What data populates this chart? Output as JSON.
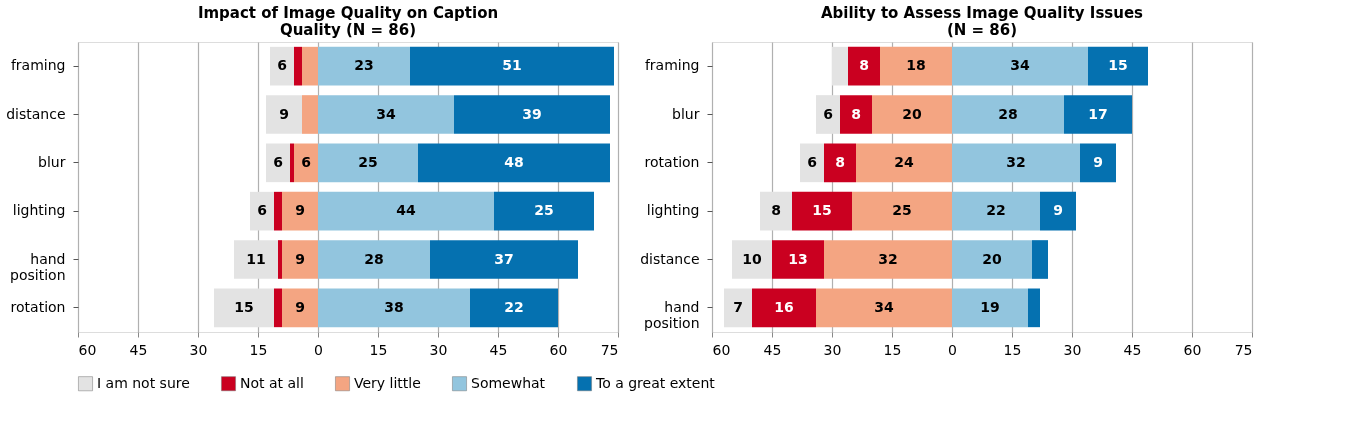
{
  "chart_data": [
    {
      "type": "bar",
      "orientation": "horizontal",
      "title": "Impact of Image Quality on Caption Quality (N = 86)",
      "categories": [
        "framing",
        "distance",
        "blur",
        "lighting",
        "hand position",
        "rotation"
      ],
      "series": [
        {
          "name": "I am not sure",
          "color": "#e3e3e3",
          "values": [
            6,
            9,
            6,
            6,
            11,
            15
          ],
          "base": [
            -12,
            -13,
            -13,
            -17,
            -21,
            -26
          ],
          "value_labels": [
            "6",
            "9",
            "6",
            "6",
            "11",
            "15"
          ]
        },
        {
          "name": "Not at all",
          "color": "#ca0020",
          "values": [
            2,
            null,
            1,
            2,
            1,
            2
          ],
          "base": [
            -6,
            null,
            -7,
            -11,
            -10,
            -11
          ],
          "value_labels": [
            null,
            null,
            null,
            null,
            null,
            null
          ]
        },
        {
          "name": "Very little",
          "color": "#f4a582",
          "values": [
            4,
            4,
            6,
            9,
            9,
            9
          ],
          "base": [
            -4,
            -4,
            -6,
            -9,
            -9,
            -9
          ],
          "value_labels": [
            null,
            null,
            "6",
            "9",
            "9",
            "9"
          ]
        },
        {
          "name": "Somewhat",
          "color": "#92c5de",
          "values": [
            23,
            34,
            25,
            44,
            28,
            38
          ],
          "base": [
            0,
            0,
            0,
            0,
            0,
            0
          ],
          "value_labels": [
            "23",
            "34",
            "25",
            "44",
            "28",
            "38"
          ]
        },
        {
          "name": "To a great extent",
          "color": "#0571b0",
          "values": [
            51,
            39,
            48,
            25,
            37,
            22
          ],
          "base": [
            23,
            34,
            25,
            44,
            28,
            38
          ],
          "value_labels": [
            "51",
            "39",
            "48",
            "25",
            "37",
            "22"
          ]
        }
      ],
      "xlim": [
        -60,
        75
      ],
      "xticks": [
        {
          "value": -60,
          "label": "60"
        },
        {
          "value": -45,
          "label": "45"
        },
        {
          "value": -30,
          "label": "30"
        },
        {
          "value": -15,
          "label": "15"
        },
        0,
        15,
        30,
        45,
        60,
        75
      ],
      "grid": "x",
      "legend": "bottom"
    },
    {
      "type": "bar",
      "orientation": "horizontal",
      "title": "Ability to Assess Image Quality Issues (N = 86)",
      "categories": [
        "framing",
        "blur",
        "rotation",
        "lighting",
        "distance",
        "hand position"
      ],
      "series": [
        {
          "name": "I am not sure",
          "color": "#e3e3e3",
          "values": [
            4,
            6,
            6,
            8,
            10,
            7
          ],
          "base": [
            -30,
            -34,
            -38,
            -48,
            -55,
            -57
          ],
          "value_labels": [
            null,
            "6",
            "6",
            "8",
            "10",
            "7"
          ]
        },
        {
          "name": "Not at all",
          "color": "#ca0020",
          "values": [
            8,
            8,
            8,
            15,
            13,
            16
          ],
          "base": [
            -26,
            -28,
            -32,
            -40,
            -45,
            -50
          ],
          "value_labels": [
            "8",
            "8",
            "8",
            "15",
            "13",
            "16"
          ]
        },
        {
          "name": "Very little",
          "color": "#f4a582",
          "values": [
            18,
            20,
            24,
            25,
            32,
            34
          ],
          "base": [
            -18,
            -20,
            -24,
            -25,
            -32,
            -34
          ],
          "value_labels": [
            "18",
            "20",
            "24",
            "25",
            "32",
            "34"
          ]
        },
        {
          "name": "Somewhat",
          "color": "#92c5de",
          "values": [
            34,
            28,
            32,
            22,
            20,
            19
          ],
          "base": [
            0,
            0,
            0,
            0,
            0,
            0
          ],
          "value_labels": [
            "34",
            "28",
            "32",
            "22",
            "20",
            "19"
          ]
        },
        {
          "name": "To a great extent",
          "color": "#0571b0",
          "values": [
            15,
            17,
            9,
            9,
            4,
            3
          ],
          "base": [
            34,
            28,
            32,
            22,
            20,
            19
          ],
          "value_labels": [
            "15",
            "17",
            "9",
            "9",
            null,
            null
          ]
        }
      ],
      "xlim": [
        -60,
        75
      ],
      "xticks": [
        {
          "value": -60,
          "label": "60"
        },
        {
          "value": -45,
          "label": "45"
        },
        {
          "value": -30,
          "label": "30"
        },
        {
          "value": -15,
          "label": "15"
        },
        0,
        15,
        30,
        45,
        60,
        75
      ],
      "grid": "x",
      "legend": "bottom"
    }
  ]
}
